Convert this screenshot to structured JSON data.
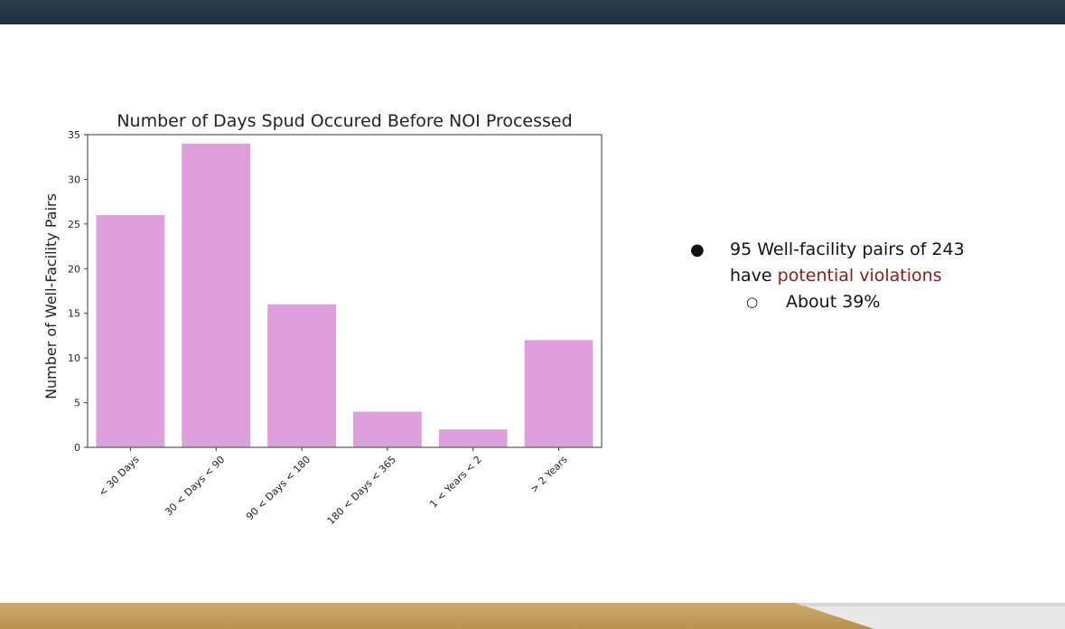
{
  "colors": {
    "bar": "#dda0dd",
    "header": "#22343f",
    "footer": "#c0a060",
    "highlight": "#8b1a1a"
  },
  "bullets": {
    "main_text_1": "95 Well-facility pairs of 243",
    "main_text_2_prefix": "have ",
    "main_text_2_highlight": "potential violations",
    "sub_text": "About 39%"
  },
  "chart_data": {
    "type": "bar",
    "title": "Number of Days Spud Occured Before NOI Processed",
    "xlabel": "",
    "ylabel": "Number of Well-Facility Pairs",
    "categories": [
      "< 30 Days",
      "30 < Days < 90",
      "90 < Days < 180",
      "180 < Days < 365",
      "1 < Years < 2",
      "> 2 Years"
    ],
    "values": [
      26,
      34,
      16,
      4,
      2,
      12
    ],
    "ylim": [
      0,
      35
    ],
    "yticks": [
      0,
      5,
      10,
      15,
      20,
      25,
      30,
      35
    ],
    "grid": false,
    "legend": "none"
  }
}
